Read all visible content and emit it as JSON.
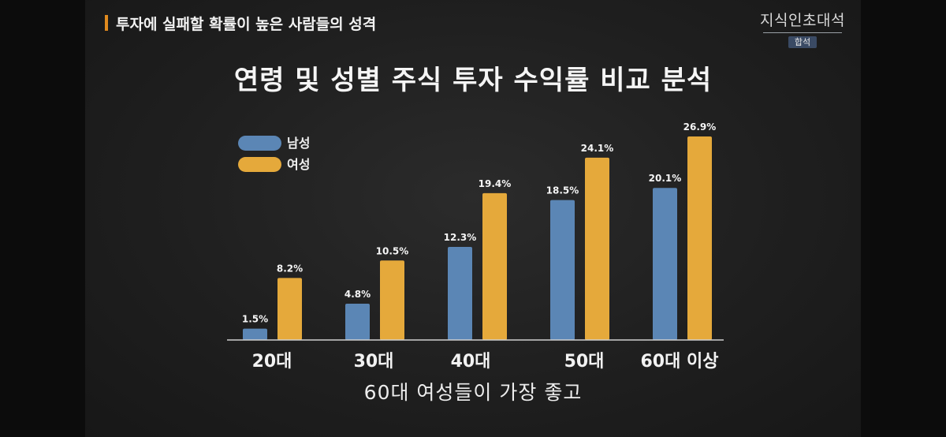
{
  "header": {
    "topic": "투자에 실패할 확률이 높은 사람들의 성격",
    "logo_main": "지식인초대석",
    "logo_sub": "합석"
  },
  "caption": "60대 여성들이 가장 좋고",
  "colors": {
    "male": "#5b86b5",
    "female": "#e5a93b",
    "accent": "#e08a1e"
  },
  "chart_data": {
    "type": "bar",
    "title": "연령 및 성별 주식 투자 수익률 비교 분석",
    "categories": [
      "20대",
      "30대",
      "40대",
      "50대",
      "60대 이상"
    ],
    "series": [
      {
        "name": "남성",
        "values": [
          1.5,
          4.8,
          12.3,
          18.5,
          20.1
        ],
        "labels": [
          "1.5%",
          "4.8%",
          "12.3%",
          "18.5%",
          "20.1%"
        ]
      },
      {
        "name": "여성",
        "values": [
          8.2,
          10.5,
          19.4,
          24.1,
          26.9
        ],
        "labels": [
          "8.2%",
          "10.5%",
          "19.4%",
          "24.1%",
          "26.9%"
        ]
      }
    ],
    "ylim": [
      0,
      26.9
    ],
    "legend": "top-left",
    "grid": false
  }
}
